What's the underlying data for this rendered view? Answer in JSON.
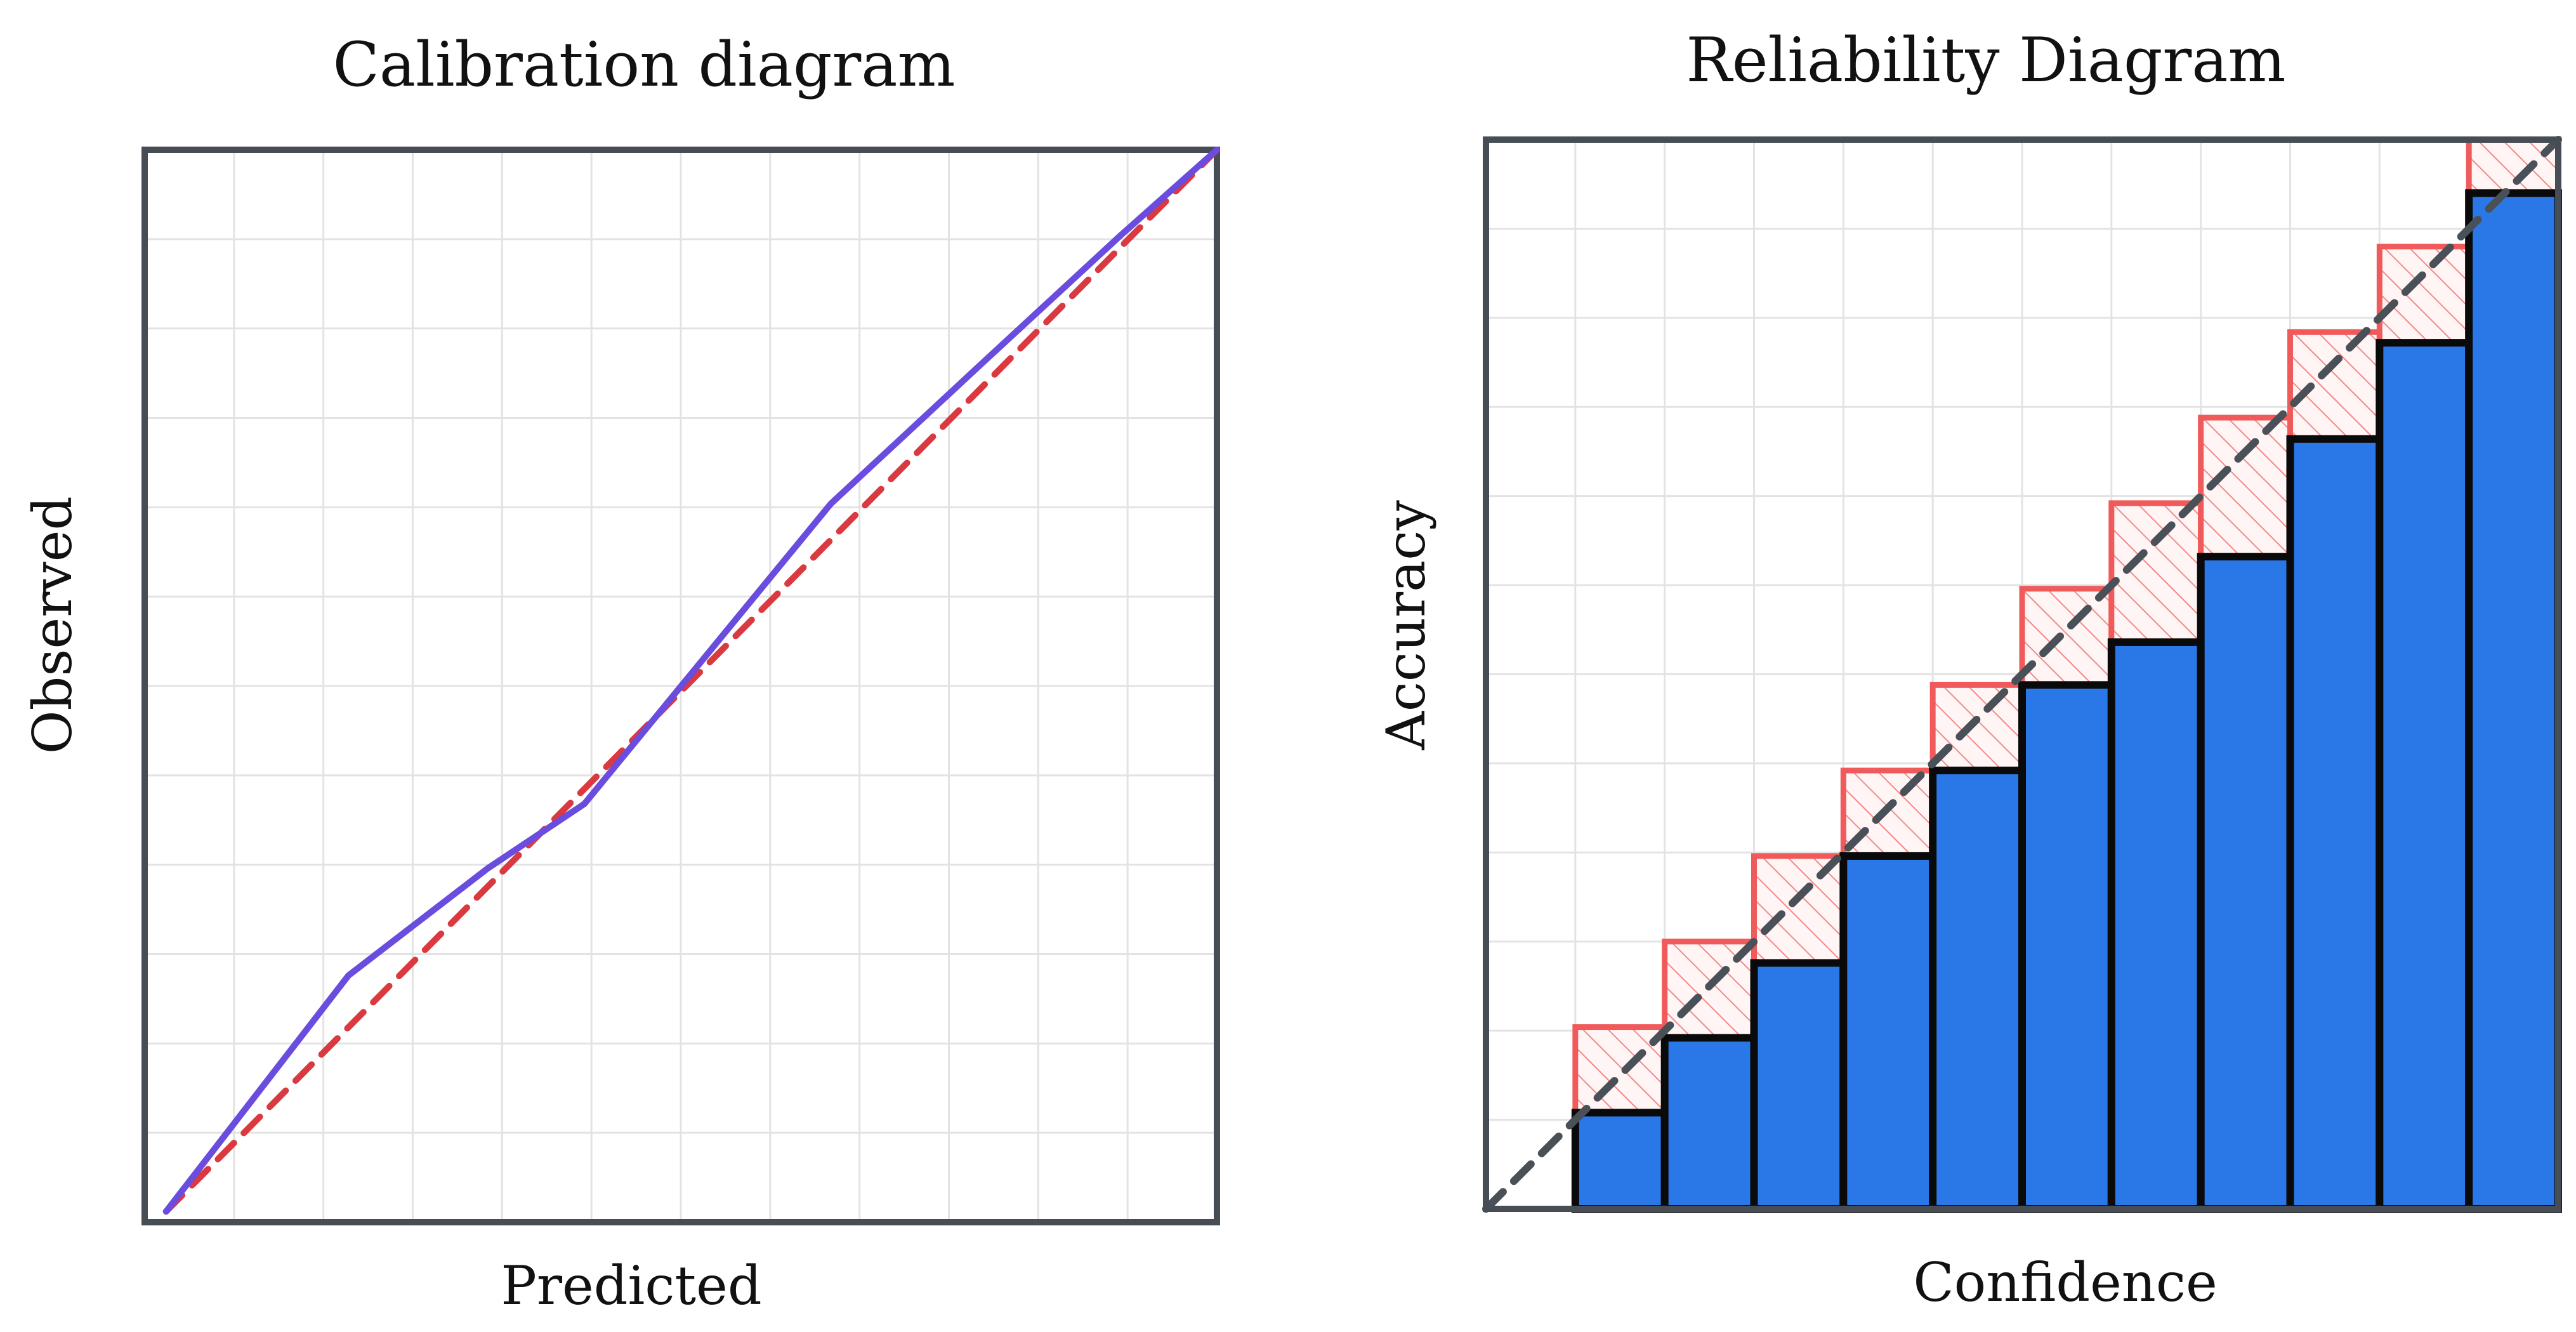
{
  "chart_data": [
    {
      "type": "line",
      "title": "Calibration diagram",
      "xlabel": "Predicted",
      "ylabel": "Observed",
      "xlim": [
        0,
        1
      ],
      "ylim": [
        0,
        1
      ],
      "grid": true,
      "series": [
        {
          "values": [
            [
              0.02,
              0.01
            ],
            [
              0.19,
              0.23
            ],
            [
              0.32,
              0.33
            ],
            [
              0.41,
              0.39
            ],
            [
              0.64,
              0.67
            ],
            [
              0.78,
              0.8
            ],
            [
              0.91,
              0.92
            ],
            [
              1.0,
              1.0
            ]
          ],
          "color": "#6a4cde"
        },
        {
          "values": [
            [
              0.02,
              0.01
            ],
            [
              1.0,
              1.0
            ]
          ],
          "color": "#d9393f",
          "style": "dashed"
        }
      ],
      "tick_count": 12
    },
    {
      "type": "bar",
      "title": "Reliability Diagram",
      "xlabel": "Confidence",
      "ylabel": "Accuracy",
      "xlim": [
        0,
        1
      ],
      "ylim": [
        0,
        1
      ],
      "grid": true,
      "bins": [
        {
          "accuracy": 0.09,
          "confidence": 0.17
        },
        {
          "accuracy": 0.16,
          "confidence": 0.25
        },
        {
          "accuracy": 0.23,
          "confidence": 0.33
        },
        {
          "accuracy": 0.33,
          "confidence": 0.41
        },
        {
          "accuracy": 0.41,
          "confidence": 0.49
        },
        {
          "accuracy": 0.49,
          "confidence": 0.58
        },
        {
          "accuracy": 0.53,
          "confidence": 0.66
        },
        {
          "accuracy": 0.61,
          "confidence": 0.74
        },
        {
          "accuracy": 0.72,
          "confidence": 0.82
        },
        {
          "accuracy": 0.81,
          "confidence": 0.9
        },
        {
          "accuracy": 0.95,
          "confidence": 1.0
        }
      ],
      "bar_color": "#2a77e8",
      "gap_color": "#f05a5a",
      "diagonal_color": "#4a5057"
    }
  ]
}
